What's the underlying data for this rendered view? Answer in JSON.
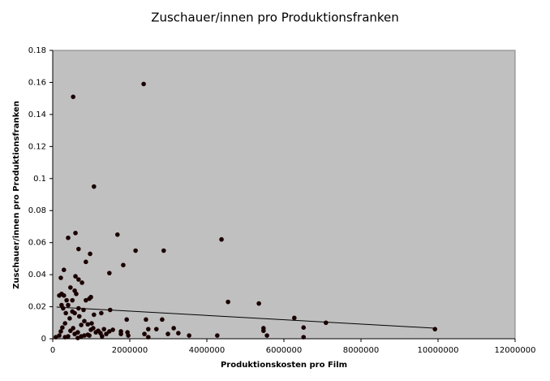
{
  "chart_data": {
    "type": "scatter",
    "title": "Zuschauer/innen pro Produktionsfranken",
    "xlabel": "Produktionskosten pro Film",
    "ylabel": "Zuschauer/innen pro Produktionsfranken",
    "color": "#1a0000",
    "background": "#c0c0c0",
    "grid": false,
    "xlim": [
      0,
      12000000
    ],
    "xticks": [
      0,
      2000000,
      4000000,
      6000000,
      8000000,
      10000000,
      12000000
    ],
    "ylim": [
      0,
      0.18
    ],
    "yticks": [
      0,
      0.02,
      0.04,
      0.06,
      0.08,
      0.1,
      0.12,
      0.14,
      0.16,
      0.18
    ],
    "x": [
      530000,
      2360000,
      1070000,
      1680000,
      400000,
      590000,
      670000,
      970000,
      2150000,
      2880000,
      4380000,
      1830000,
      860000,
      1470000,
      290000,
      590000,
      670000,
      760000,
      210000,
      4550000,
      5350000,
      6270000,
      6510000,
      7090000,
      9920000,
      5470000,
      5470000,
      5560000,
      6510000,
      4270000,
      3540000,
      2990000,
      3140000,
      3260000,
      2840000,
      2420000,
      2690000,
      2480000,
      2380000,
      2480000,
      1920000,
      1940000,
      1960000,
      1770000,
      1770000,
      1490000,
      1260000,
      1070000,
      80000,
      170000,
      210000,
      250000,
      320000,
      170000,
      230000,
      290000,
      230000,
      270000,
      340000,
      400000,
      360000,
      460000,
      510000,
      570000,
      610000,
      670000,
      510000,
      440000,
      570000,
      690000,
      800000,
      860000,
      950000,
      990000,
      820000,
      910000,
      460000,
      530000,
      570000,
      650000,
      740000,
      820000,
      910000,
      990000,
      1050000,
      1120000,
      1180000,
      1240000,
      1330000,
      1390000,
      1470000,
      1560000,
      1280000,
      320000,
      400000,
      650000,
      950000,
      1010000,
      740000
    ],
    "values": [
      0.151,
      0.159,
      0.095,
      0.065,
      0.063,
      0.066,
      0.056,
      0.053,
      0.055,
      0.055,
      0.062,
      0.046,
      0.048,
      0.041,
      0.043,
      0.039,
      0.037,
      0.035,
      0.038,
      0.023,
      0.022,
      0.013,
      0.007,
      0.01,
      0.006,
      0.0066,
      0.005,
      0.002,
      0.001,
      0.002,
      0.002,
      0.003,
      0.0066,
      0.0035,
      0.012,
      0.012,
      0.006,
      0.006,
      0.003,
      0.001,
      0.012,
      0.004,
      0.002,
      0.0046,
      0.003,
      0.018,
      0.016,
      0.015,
      0.001,
      0.002,
      0.0046,
      0.007,
      0.0096,
      0.027,
      0.028,
      0.027,
      0.021,
      0.019,
      0.016,
      0.021,
      0.024,
      0.032,
      0.024,
      0.03,
      0.028,
      0.019,
      0.017,
      0.0127,
      0.016,
      0.014,
      0.018,
      0.024,
      0.025,
      0.026,
      0.011,
      0.009,
      0.005,
      0.0066,
      0.003,
      0.004,
      0.0015,
      0.002,
      0.0025,
      0.0056,
      0.0066,
      0.004,
      0.005,
      0.0035,
      0.006,
      0.003,
      0.0046,
      0.0056,
      0.0015,
      0.001,
      0.0015,
      0.0005,
      0.002,
      0.0096,
      0.0086
    ],
    "trendline": {
      "x": [
        100000,
        9920000
      ],
      "values": [
        0.0198,
        0.0066
      ]
    }
  }
}
